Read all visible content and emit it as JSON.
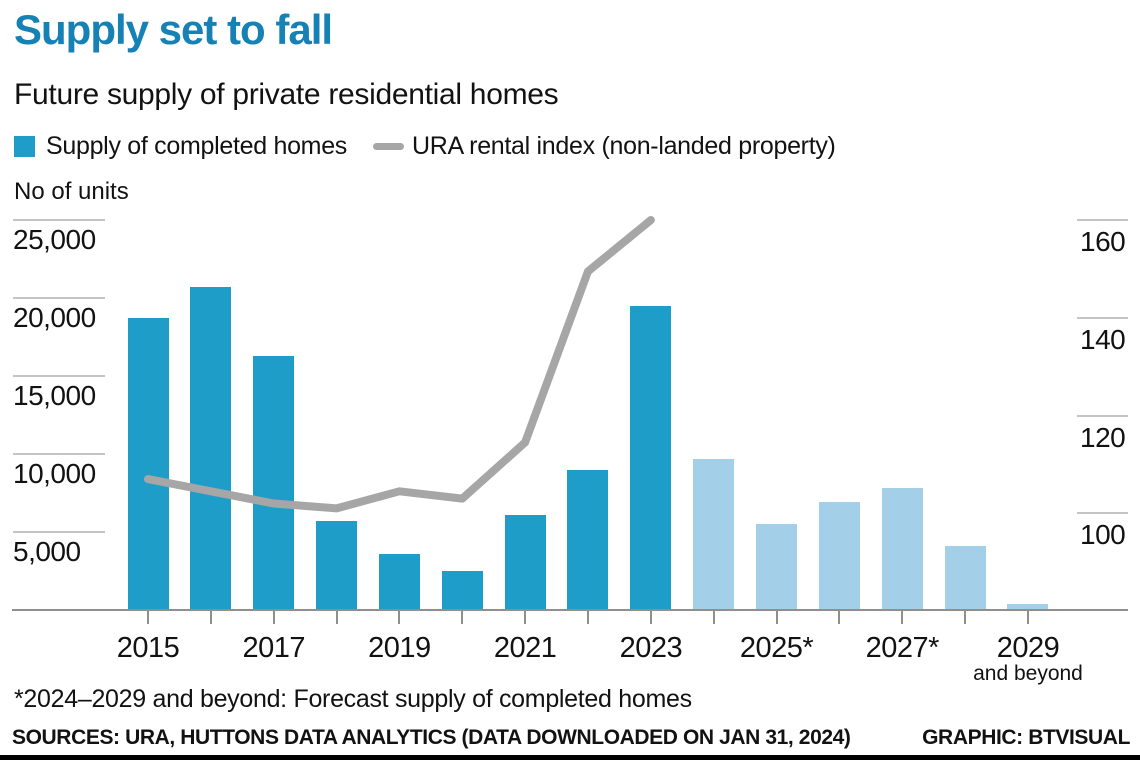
{
  "header": {
    "title": "Supply set to fall",
    "subtitle": "Future supply of private residential homes"
  },
  "legend": {
    "bar_label": "Supply of completed homes",
    "line_label": "URA rental index (non-landed property)"
  },
  "footer": {
    "footnote": "*2024–2029 and beyond: Forecast supply of completed homes",
    "sources": "SOURCES: URA, HUTTONS DATA ANALYTICS (DATA DOWNLOADED ON JAN 31, 2024)",
    "credit": "GRAPHIC: BTVISUAL"
  },
  "chart_data": {
    "type": "bar+line",
    "title": "Supply set to fall",
    "subtitle": "Future supply of private residential homes",
    "categories": [
      2015,
      2016,
      2017,
      2018,
      2019,
      2020,
      2021,
      2022,
      2023,
      2024,
      2025,
      2026,
      2027,
      2028,
      2029
    ],
    "last_category_note": "2029 and beyond",
    "forecast_start_year": 2024,
    "series": [
      {
        "name": "Supply of completed homes",
        "type": "bar",
        "axis": "left",
        "values": [
          18700,
          20700,
          16300,
          5700,
          3600,
          2500,
          6100,
          9000,
          19500,
          9700,
          5500,
          6900,
          7800,
          4100,
          400
        ]
      },
      {
        "name": "URA rental index (non-landed property)",
        "type": "line",
        "axis": "right",
        "x": [
          2015,
          2016,
          2017,
          2018,
          2019,
          2020,
          2021,
          2022,
          2023
        ],
        "values": [
          107,
          104.5,
          102,
          101,
          104.5,
          103,
          114.5,
          149.5,
          160
        ]
      }
    ],
    "left_axis": {
      "title": "No of units",
      "tick_values": [
        25000,
        20000,
        15000,
        10000,
        5000
      ],
      "tick_labels": [
        "25,000",
        "20,000",
        "15,000",
        "10,000",
        "5,000"
      ],
      "range": [
        0,
        25000
      ]
    },
    "right_axis": {
      "tick_values": [
        160,
        140,
        120,
        100
      ],
      "tick_labels": [
        "160",
        "140",
        "120",
        "100"
      ],
      "visible_range": [
        100,
        160
      ]
    },
    "x_tick_labels": [
      "2015",
      "2017",
      "2019",
      "2021",
      "2023",
      "2025*",
      "2027*",
      "2029"
    ],
    "x_sub_label": "and beyond",
    "legend_position": "top",
    "grid": "short tick lines at left and right margins only",
    "colors": {
      "title": "#1581b5",
      "bar": "#1f9dc9",
      "bar_forecast": "#a3cfe9",
      "line": "#a6a6a6",
      "grid": "#c4c4c4",
      "axis": "#8f8f8f",
      "text": "#121212"
    }
  }
}
